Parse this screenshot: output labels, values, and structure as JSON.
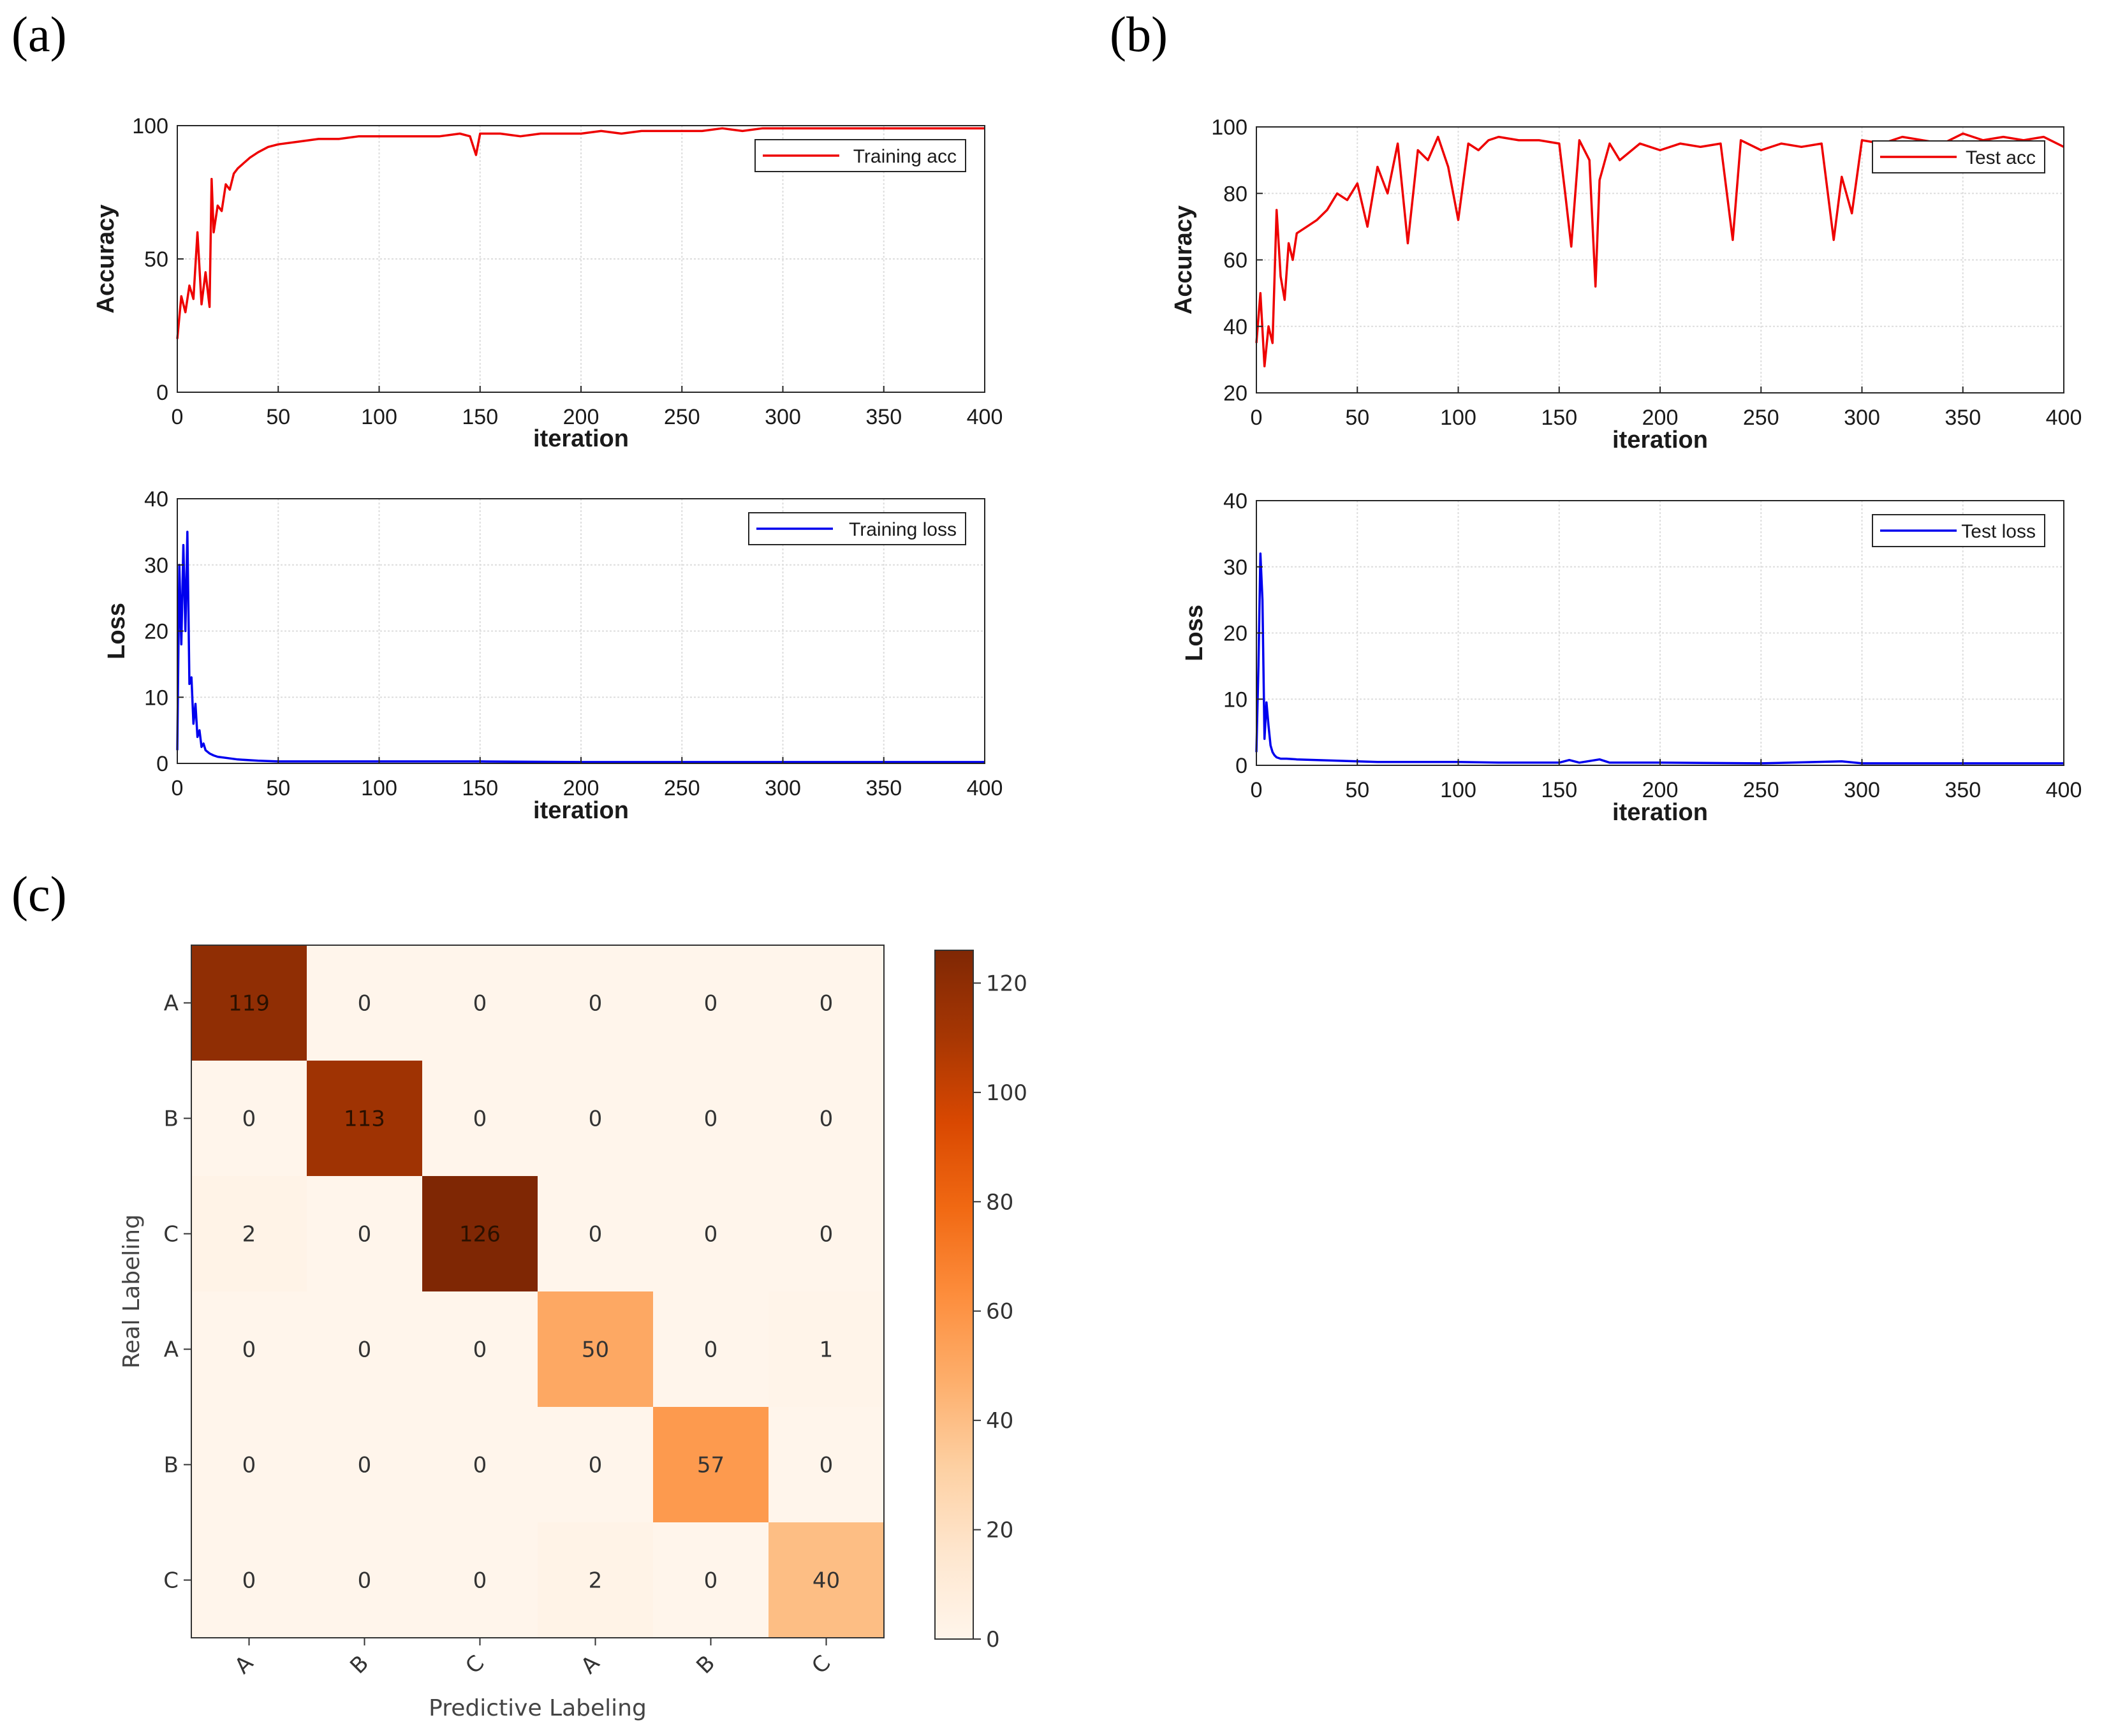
{
  "panels": {
    "a": "(a)",
    "b": "(b)",
    "c": "(c)"
  },
  "chart_data": [
    {
      "id": "train_acc",
      "type": "line",
      "panel": "a",
      "xlabel": "iteration",
      "ylabel": "Accuracy",
      "xlim": [
        0,
        400
      ],
      "ylim": [
        0,
        100
      ],
      "xticks": [
        0,
        50,
        100,
        150,
        200,
        250,
        300,
        350,
        400
      ],
      "yticks": [
        0,
        50,
        100
      ],
      "grid": true,
      "legend": {
        "label": "Training  acc",
        "placement": "top-right"
      },
      "color": "#ee0000",
      "series": [
        {
          "name": "Training  acc",
          "x": [
            0,
            2,
            4,
            6,
            8,
            10,
            12,
            14,
            16,
            17,
            18,
            20,
            22,
            24,
            26,
            28,
            30,
            33,
            36,
            40,
            45,
            50,
            60,
            70,
            80,
            90,
            100,
            110,
            120,
            130,
            140,
            145,
            148,
            150,
            160,
            170,
            180,
            190,
            200,
            210,
            220,
            230,
            240,
            250,
            260,
            270,
            280,
            290,
            300,
            320,
            340,
            360,
            380,
            400
          ],
          "y": [
            20,
            36,
            30,
            40,
            35,
            60,
            33,
            45,
            32,
            80,
            60,
            70,
            68,
            78,
            76,
            82,
            84,
            86,
            88,
            90,
            92,
            93,
            94,
            95,
            95,
            96,
            96,
            96,
            96,
            96,
            97,
            96,
            89,
            97,
            97,
            96,
            97,
            97,
            97,
            98,
            97,
            98,
            98,
            98,
            98,
            99,
            98,
            99,
            99,
            99,
            99,
            99,
            99,
            99
          ]
        }
      ]
    },
    {
      "id": "train_loss",
      "type": "line",
      "panel": "a",
      "xlabel": "iteration",
      "ylabel": "Loss",
      "xlim": [
        0,
        400
      ],
      "ylim": [
        0,
        40
      ],
      "xticks": [
        0,
        50,
        100,
        150,
        200,
        250,
        300,
        350,
        400
      ],
      "yticks": [
        0,
        10,
        20,
        30,
        40
      ],
      "grid": true,
      "legend": {
        "label": "Training  loss",
        "placement": "top-right"
      },
      "color": "#0000ee",
      "series": [
        {
          "name": "Training  loss",
          "x": [
            0,
            1,
            2,
            3,
            4,
            5,
            6,
            7,
            8,
            9,
            10,
            11,
            12,
            13,
            14,
            16,
            18,
            20,
            25,
            30,
            40,
            50,
            100,
            150,
            200,
            250,
            300,
            350,
            400
          ],
          "y": [
            2,
            30,
            18,
            33,
            20,
            35,
            12,
            13,
            6,
            9,
            4,
            5,
            2.5,
            3,
            2,
            1.5,
            1.2,
            1.0,
            0.8,
            0.6,
            0.4,
            0.3,
            0.3,
            0.3,
            0.2,
            0.2,
            0.2,
            0.2,
            0.2
          ]
        }
      ]
    },
    {
      "id": "test_acc",
      "type": "line",
      "panel": "b",
      "xlabel": "iteration",
      "ylabel": "Accuracy",
      "xlim": [
        0,
        400
      ],
      "ylim": [
        20,
        100
      ],
      "xticks": [
        0,
        50,
        100,
        150,
        200,
        250,
        300,
        350,
        400
      ],
      "yticks": [
        20,
        40,
        60,
        80,
        100
      ],
      "grid": true,
      "legend": {
        "label": "Test acc",
        "placement": "top-right"
      },
      "color": "#ee0000",
      "series": [
        {
          "name": "Test acc",
          "x": [
            0,
            2,
            4,
            6,
            8,
            10,
            12,
            14,
            16,
            18,
            20,
            25,
            30,
            35,
            40,
            45,
            50,
            55,
            60,
            65,
            70,
            75,
            80,
            85,
            90,
            95,
            100,
            105,
            110,
            115,
            120,
            130,
            140,
            150,
            153,
            156,
            160,
            165,
            168,
            170,
            175,
            180,
            190,
            200,
            210,
            220,
            230,
            236,
            240,
            250,
            260,
            270,
            280,
            286,
            290,
            295,
            300,
            310,
            320,
            330,
            340,
            350,
            360,
            370,
            380,
            390,
            400
          ],
          "y": [
            35,
            50,
            28,
            40,
            35,
            75,
            55,
            48,
            65,
            60,
            68,
            70,
            72,
            75,
            80,
            78,
            83,
            70,
            88,
            80,
            95,
            65,
            93,
            90,
            97,
            88,
            72,
            95,
            93,
            96,
            97,
            96,
            96,
            95,
            80,
            64,
            96,
            90,
            52,
            84,
            95,
            90,
            95,
            93,
            95,
            94,
            95,
            66,
            96,
            93,
            95,
            94,
            95,
            66,
            85,
            74,
            96,
            95,
            97,
            96,
            95,
            98,
            96,
            97,
            96,
            97,
            94
          ]
        }
      ]
    },
    {
      "id": "test_loss",
      "type": "line",
      "panel": "b",
      "xlabel": "iteration",
      "ylabel": "Loss",
      "xlim": [
        0,
        400
      ],
      "ylim": [
        0,
        40
      ],
      "xticks": [
        0,
        50,
        100,
        150,
        200,
        250,
        300,
        350,
        400
      ],
      "yticks": [
        0,
        10,
        20,
        30,
        40
      ],
      "grid": true,
      "legend": {
        "label": "Test loss",
        "placement": "top-right"
      },
      "color": "#0000ee",
      "series": [
        {
          "name": "Test loss",
          "x": [
            0,
            1,
            2,
            3,
            4,
            5,
            6,
            7,
            8,
            9,
            10,
            12,
            15,
            20,
            30,
            40,
            50,
            60,
            80,
            100,
            120,
            150,
            155,
            160,
            170,
            175,
            200,
            250,
            290,
            300,
            350,
            400
          ],
          "y": [
            2,
            15,
            32,
            25,
            4,
            9.5,
            6,
            3,
            2,
            1.5,
            1.2,
            1.0,
            1.0,
            0.9,
            0.8,
            0.7,
            0.6,
            0.5,
            0.5,
            0.5,
            0.4,
            0.4,
            0.8,
            0.4,
            0.9,
            0.4,
            0.4,
            0.3,
            0.6,
            0.3,
            0.3,
            0.3
          ]
        }
      ]
    },
    {
      "id": "confusion_matrix",
      "type": "heatmap",
      "panel": "c",
      "xlabel": "Predictive Labeling",
      "ylabel": "Real Labeling",
      "row_labels": [
        "A",
        "B",
        "C",
        "A",
        "B",
        "C"
      ],
      "col_labels": [
        "A",
        "B",
        "C",
        "A",
        "B",
        "C"
      ],
      "values": [
        [
          119,
          0,
          0,
          0,
          0,
          0
        ],
        [
          0,
          113,
          0,
          0,
          0,
          0
        ],
        [
          2,
          0,
          126,
          0,
          0,
          0
        ],
        [
          0,
          0,
          0,
          50,
          0,
          1
        ],
        [
          0,
          0,
          0,
          0,
          57,
          0
        ],
        [
          0,
          0,
          0,
          2,
          0,
          40
        ]
      ],
      "colorbar": {
        "min": 0,
        "max": 126,
        "ticks": [
          0,
          20,
          40,
          60,
          80,
          100,
          120
        ]
      },
      "colormap": "Oranges"
    }
  ]
}
